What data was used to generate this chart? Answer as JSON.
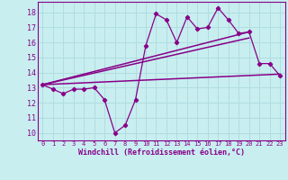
{
  "title": "",
  "xlabel": "Windchill (Refroidissement éolien,°C)",
  "ylabel": "",
  "bg_color": "#c8eef0",
  "line_color": "#880088",
  "grid_color": "#b0dde0",
  "xlim": [
    -0.5,
    23.5
  ],
  "ylim": [
    9.5,
    18.7
  ],
  "xticks": [
    0,
    1,
    2,
    3,
    4,
    5,
    6,
    7,
    8,
    9,
    10,
    11,
    12,
    13,
    14,
    15,
    16,
    17,
    18,
    19,
    20,
    21,
    22,
    23
  ],
  "yticks": [
    10,
    11,
    12,
    13,
    14,
    15,
    16,
    17,
    18
  ],
  "data_x": [
    0,
    1,
    2,
    3,
    4,
    5,
    6,
    7,
    8,
    9,
    10,
    11,
    12,
    13,
    14,
    15,
    16,
    17,
    18,
    19,
    20,
    21,
    22,
    23
  ],
  "data_y": [
    13.2,
    12.9,
    12.6,
    12.9,
    12.9,
    13.0,
    12.2,
    10.0,
    10.5,
    12.2,
    15.8,
    17.9,
    17.5,
    16.0,
    17.7,
    16.9,
    17.0,
    18.3,
    17.5,
    16.6,
    16.7,
    14.6,
    14.6,
    13.8
  ],
  "trend1_x": [
    0,
    23
  ],
  "trend1_y": [
    13.2,
    13.9
  ],
  "trend2_x": [
    0,
    20
  ],
  "trend2_y": [
    13.2,
    16.7
  ],
  "trend3_x": [
    0,
    20
  ],
  "trend3_y": [
    13.2,
    16.3
  ]
}
